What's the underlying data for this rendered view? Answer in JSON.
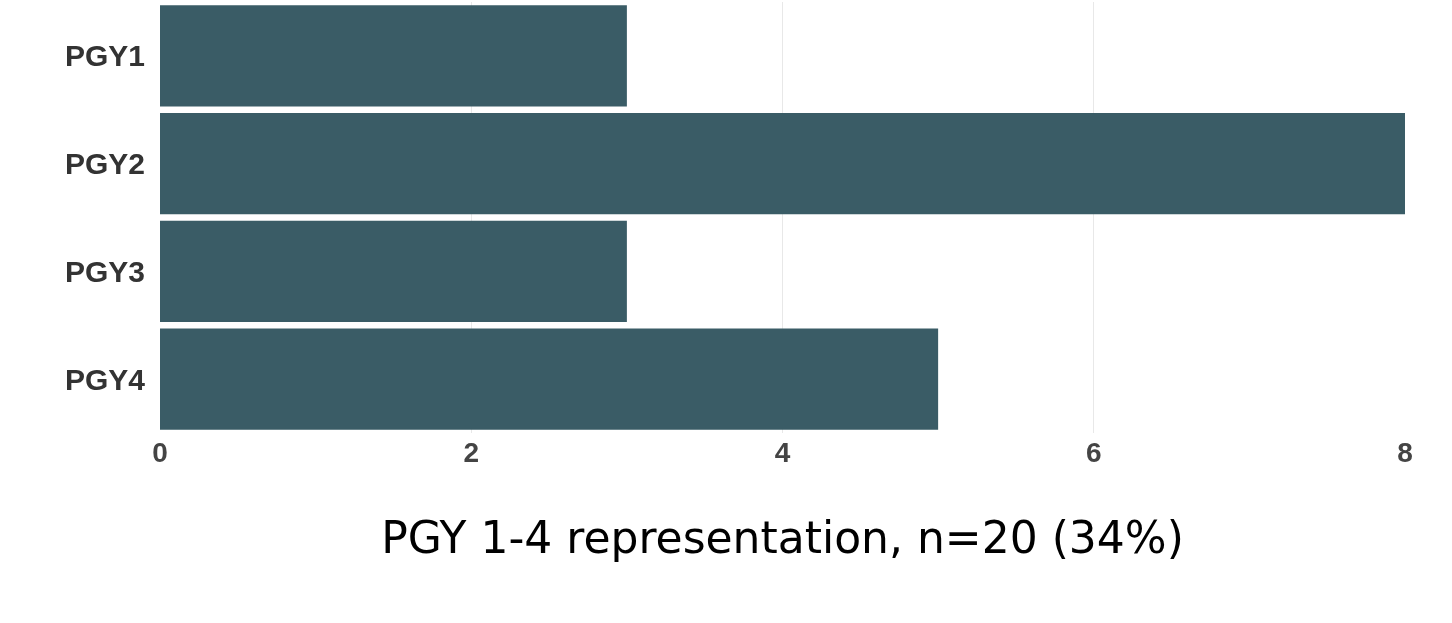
{
  "chart_data": {
    "type": "bar",
    "orientation": "horizontal",
    "xlabel": "PGY 1-4 representation, n=20 (34%)",
    "categories": [
      "PGY1",
      "PGY2",
      "PGY3",
      "PGY4"
    ],
    "values": [
      3,
      8,
      3,
      5
    ],
    "color": "#3a5c66",
    "xlim": [
      0,
      8
    ],
    "xticks": [
      0,
      2,
      4,
      6,
      8
    ],
    "grid": "x",
    "legend": false
  }
}
